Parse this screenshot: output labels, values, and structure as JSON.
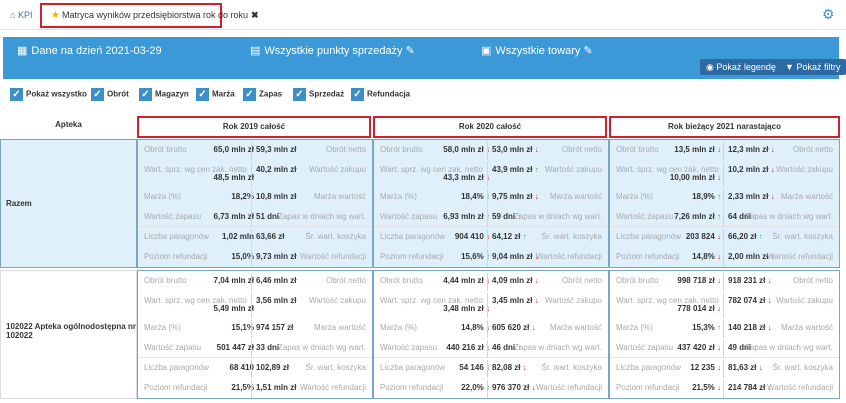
{
  "breadcrumb": {
    "home_label": "KPI"
  },
  "tab": {
    "title": "Matryca wyników przedsiębiorstwa rok do roku"
  },
  "filters": {
    "date": "Dane na dzień 2021-03-29",
    "points": "Wszystkie punkty sprzedaży",
    "goods": "Wszystkie towary",
    "legend_btn": "Pokaż legendę",
    "filters_btn": "Pokaż filtry"
  },
  "checks": [
    "Pokaż wszystko",
    "Obrót",
    "Magazyn",
    "Marża",
    "Zapas",
    "Sprzedaż",
    "Refundacja"
  ],
  "table": {
    "apteka_header": "Apteka",
    "columns": [
      "Rok 2019 całość",
      "Rok 2020 całość",
      "Rok bieżący 2021 narastająco"
    ],
    "rows": [
      {
        "name": "Razem",
        "blocks": [
          [
            {
              "l": "Obrót brutto",
              "lv": "65,0 mln zł",
              "rv": "59,3 mln zł",
              "r": "Obrót netto"
            },
            {
              "l": "Wart. sprz. wg cen zak. netto",
              "lv": "48,5 mln zł",
              "rv": "40,2 mln zł",
              "r": "Wartość zakupu"
            },
            {
              "l": "Marża (%)",
              "lv": "18,2%",
              "rv": "10,8 mln zł",
              "r": "Marża wartość"
            },
            {
              "l": "Wartość zapasu",
              "lv": "6,73 mln zł",
              "rv": "51 dni",
              "r": "Zapas w dniach wg wart."
            },
            {
              "l": "Liczba paragonów",
              "lv": "1,02 mln",
              "rv": "63,66 zł",
              "r": "Śr. wart. koszyka"
            },
            {
              "l": "Poziom refundacji",
              "lv": "15,0%",
              "rv": "9,73 mln zł",
              "r": "Wartość refundacji"
            }
          ],
          [
            {
              "l": "Obrót brutto",
              "lv": "58,0 mln zł",
              "la": "↓",
              "rv": "53,0 mln zł",
              "ra": "↓",
              "r": "Obrót netto"
            },
            {
              "l": "Wart. sprz. wg cen zak. netto",
              "lv": "43,3 mln zł",
              "la": "↓",
              "rv": "43,9 mln zł",
              "ra": "↑",
              "r": "Wartość zakupu"
            },
            {
              "l": "Marża (%)",
              "lv": "18,4%",
              "la": "↑",
              "rv": "9,75 mln zł",
              "ra": "↓",
              "r": "Marża wartość"
            },
            {
              "l": "Wartość zapasu",
              "lv": "6,93 mln zł",
              "la": "↑",
              "rv": "59 dni",
              "ra": "↑",
              "r": "Zapas w dniach wg wart."
            },
            {
              "l": "Liczba paragonów",
              "lv": "904 410",
              "la": "↓",
              "rv": "64,12 zł",
              "ra": "↑",
              "r": "Śr. wart. koszyka"
            },
            {
              "l": "Poziom refundacji",
              "lv": "15,6%",
              "la": "↑",
              "rv": "9,04 mln zł",
              "ra": "↓",
              "r": "Wartość refundacji"
            }
          ],
          [
            {
              "l": "Obrót brutto",
              "lv": "13,5 mln zł",
              "la": "↓",
              "rv": "12,3 mln zł",
              "ra": "↓",
              "r": "Obrót netto"
            },
            {
              "l": "Wart. sprz. wg cen zak. netto",
              "lv": "10,00 mln zł",
              "la": "↓",
              "rv": "10,2 mln zł",
              "ra": "↓",
              "r": "Wartość zakupu"
            },
            {
              "l": "Marża (%)",
              "lv": "18,9%",
              "la": "↑",
              "rv": "2,33 mln zł",
              "ra": "↓",
              "r": "Marża wartość"
            },
            {
              "l": "Wartość zapasu",
              "lv": "7,26 mln zł",
              "la": "↑",
              "rv": "64 dni",
              "ra": "↑",
              "r": "Zapas w dniach wg wart."
            },
            {
              "l": "Liczba paragonów",
              "lv": "203 824",
              "la": "↓",
              "rv": "66,20 zł",
              "ra": "↑",
              "r": "Śr. wart. koszyka"
            },
            {
              "l": "Poziom refundacji",
              "lv": "14,8%",
              "la": "↓",
              "rv": "2,00 mln zł",
              "ra": "↓",
              "r": "Wartość refundacji"
            }
          ]
        ]
      },
      {
        "name": "102022 Apteka ogólnodostępna nr 102022",
        "blocks": [
          [
            {
              "l": "Obrót brutto",
              "lv": "7,04 mln zł",
              "rv": "6,46 mln zł",
              "r": "Obrót netto"
            },
            {
              "l": "Wart. sprz. wg cen zak. netto",
              "lv": "5,49 mln zł",
              "rv": "3,56 mln zł",
              "r": "Wartość zakupu"
            },
            {
              "l": "Marża (%)",
              "lv": "15,1%",
              "rv": "974 157 zł",
              "r": "Marża wartość"
            },
            {
              "l": "Wartość zapasu",
              "lv": "501 447 zł",
              "rv": "33 dni",
              "r": "Zapas w dniach wg wart."
            },
            {
              "l": "Liczba paragonów",
              "lv": "68 410",
              "rv": "102,89 zł",
              "r": "Śr. wart. koszyka"
            },
            {
              "l": "Poziom refundacji",
              "lv": "21,5%",
              "rv": "1,51 mln zł",
              "r": "Wartość refundacji"
            }
          ],
          [
            {
              "l": "Obrót brutto",
              "lv": "4,44 mln zł",
              "la": "↓",
              "rv": "4,09 mln zł",
              "ra": "↓",
              "r": "Obrót netto"
            },
            {
              "l": "Wart. sprz. wg cen zak. netto",
              "lv": "3,48 mln zł",
              "la": "↓",
              "rv": "3,45 mln zł",
              "ra": "↓",
              "r": "Wartość zakupu"
            },
            {
              "l": "Marża (%)",
              "lv": "14,8%",
              "la": "↓",
              "rv": "605 620 zł",
              "ra": "↓",
              "r": "Marża wartość"
            },
            {
              "l": "Wartość zapasu",
              "lv": "440 216 zł",
              "la": "↓",
              "rv": "46 dni",
              "ra": "↑",
              "r": "Zapas w dniach wg wart."
            },
            {
              "l": "Liczba paragonów",
              "lv": "54 146",
              "la": "↓",
              "rv": "82,08 zł",
              "ra": "↓",
              "r": "Śr. wart. koszyka"
            },
            {
              "l": "Poziom refundacji",
              "lv": "22,0%",
              "la": "↑",
              "rv": "976 370 zł",
              "ra": "↓",
              "r": "Wartość refundacji"
            }
          ],
          [
            {
              "l": "Obrót brutto",
              "lv": "998 718 zł",
              "la": "↓",
              "rv": "918 231 zł",
              "ra": "↓",
              "r": "Obrót netto"
            },
            {
              "l": "Wart. sprz. wg cen zak. netto",
              "lv": "778 014 zł",
              "la": "↓",
              "rv": "782 074 zł",
              "ra": "↓",
              "r": "Wartość zakupu"
            },
            {
              "l": "Marża (%)",
              "lv": "15,3%",
              "la": "↑",
              "rv": "140 218 zł",
              "ra": "↓",
              "r": "Marża wartość"
            },
            {
              "l": "Wartość zapasu",
              "lv": "437 420 zł",
              "la": "↓",
              "rv": "49 dni",
              "ra": "↑",
              "r": "Zapas w dniach wg wart."
            },
            {
              "l": "Liczba paragonów",
              "lv": "12 235",
              "la": "↓",
              "rv": "81,63 zł",
              "ra": "↓",
              "r": "Śr. wart. koszyka"
            },
            {
              "l": "Poziom refundacji",
              "lv": "21,5%",
              "la": "↓",
              "rv": "214 784 zł",
              "ra": "↓",
              "r": "Wartość refundacji"
            }
          ]
        ]
      }
    ]
  }
}
